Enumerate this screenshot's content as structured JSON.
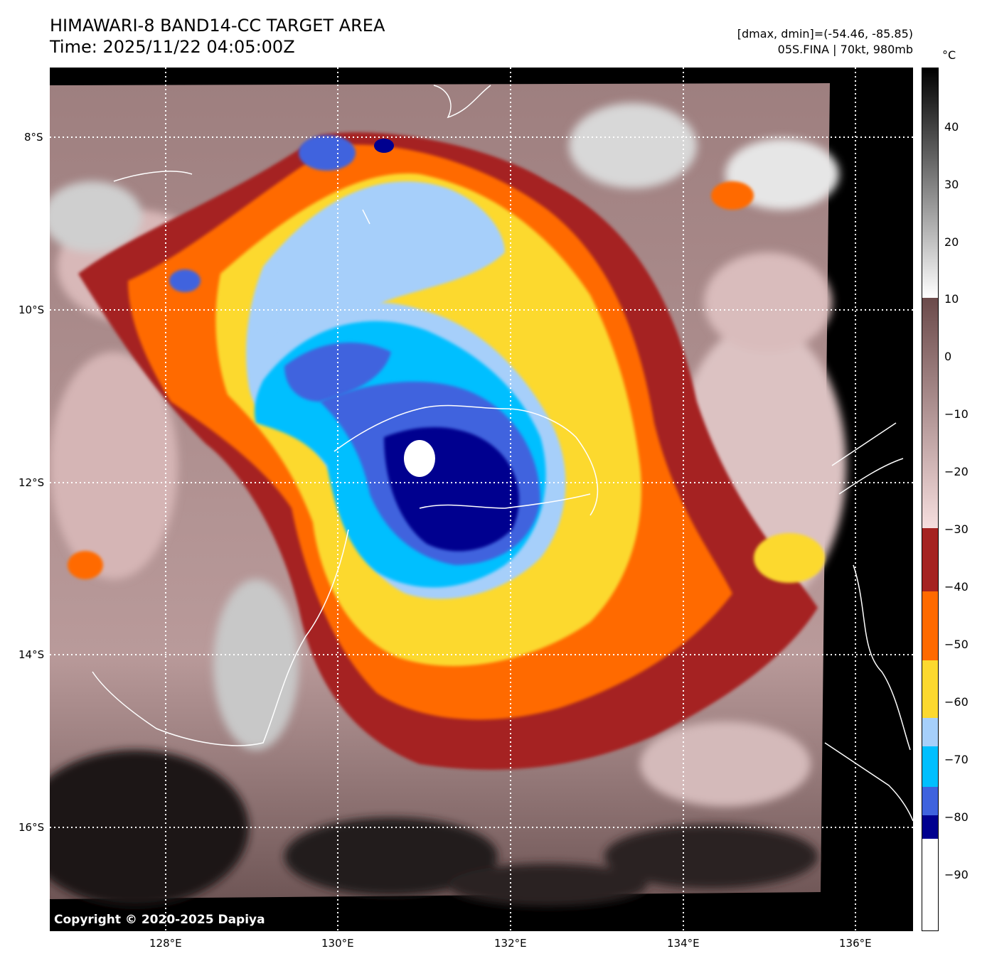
{
  "header": {
    "title_line1": "HIMAWARI-8 BAND14-CC TARGET AREA",
    "title_line2": "Time: 2025/11/22 04:05:00Z",
    "dminmax": "[dmax, dmin]=(-54.46, -85.85)",
    "storm": "05S.FINA | 70kt, 980mb"
  },
  "map": {
    "lat_labels": [
      "8°S",
      "10°S",
      "12°S",
      "14°S",
      "16°S"
    ],
    "lon_labels": [
      "128°E",
      "130°E",
      "132°E",
      "134°E",
      "136°E"
    ],
    "copyright": "Copyright © 2020-2025 Dapiya",
    "eye_center": {
      "lat": "11.8°S",
      "lon": "131.0°E"
    }
  },
  "colorbar": {
    "unit": "°C",
    "tick_labels": [
      "40",
      "30",
      "20",
      "10",
      "0",
      "−10",
      "−20",
      "−30",
      "−40",
      "−50",
      "−60",
      "−70",
      "−80",
      "−90"
    ],
    "segments": [
      {
        "from": 50,
        "to": 10,
        "kind": "gray",
        "top": "#000000",
        "bottom": "#ffffff"
      },
      {
        "from": 10,
        "to": -30,
        "kind": "gradient",
        "top": "#6b4a4a",
        "bottom": "#f6dede"
      },
      {
        "from": -30,
        "to": -41,
        "color": "#a52321"
      },
      {
        "from": -41,
        "to": -53,
        "color": "#ff6a00"
      },
      {
        "from": -53,
        "to": -63,
        "color": "#fcd92f"
      },
      {
        "from": -63,
        "to": -68,
        "color": "#a6cffa"
      },
      {
        "from": -68,
        "to": -75,
        "color": "#00bfff"
      },
      {
        "from": -75,
        "to": -80,
        "color": "#3f63de"
      },
      {
        "from": -80,
        "to": -84,
        "color": "#00008f"
      },
      {
        "from": -84,
        "to": -100,
        "color": "#ffffff"
      }
    ],
    "colors": {
      "cloud_bg": "#a08080",
      "cloud_light": "#e6c8c8",
      "cold_land": "#2a2020"
    }
  }
}
